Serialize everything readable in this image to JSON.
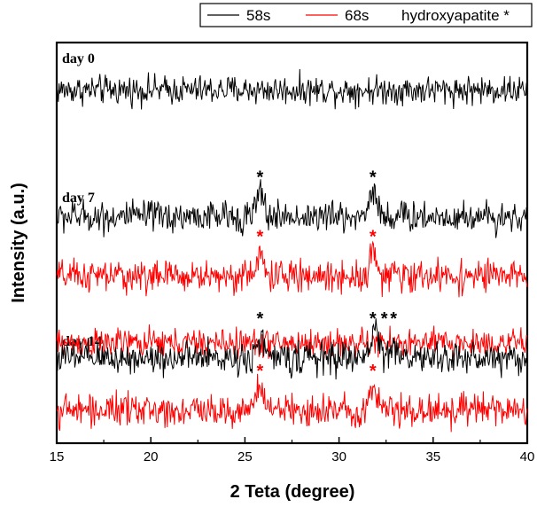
{
  "chart_data": {
    "type": "line",
    "title": "",
    "xlabel": "2 Teta (degree)",
    "ylabel": "Intensity (a.u.)",
    "xlim": [
      15,
      40
    ],
    "xticks": [
      15,
      20,
      25,
      30,
      35,
      40
    ],
    "y_scale": "arbitrary units, traces vertically offset",
    "legend_position": "top-right, outside plot area",
    "legend": [
      {
        "label": "58s",
        "color": "#000000"
      },
      {
        "label": "68s",
        "color": "#ff0000"
      },
      {
        "label": "hydroxyapatite *",
        "marker": true
      }
    ],
    "series": [
      {
        "name": "58s",
        "color": "#000000",
        "panel": "day 0",
        "offset": 92,
        "noise": 0.9,
        "peaks": []
      },
      {
        "name": "68s",
        "color": "#ff0000",
        "panel": "day 0",
        "offset": 24,
        "noise": 0.9,
        "peaks": []
      },
      {
        "name": "58s",
        "color": "#000000",
        "panel": "day 7",
        "offset": 58,
        "noise": 1.0,
        "peaks": [
          {
            "x": 25.8,
            "h": 1.3
          },
          {
            "x": 31.8,
            "h": 1.6
          }
        ]
      },
      {
        "name": "68s",
        "color": "#ff0000",
        "panel": "day 7",
        "offset": 42,
        "noise": 1.0,
        "peaks": [
          {
            "x": 25.8,
            "h": 1.1
          },
          {
            "x": 31.8,
            "h": 1.3
          }
        ]
      },
      {
        "name": "58s",
        "color": "#000000",
        "panel": "day 14",
        "offset": 20,
        "noise": 1.0,
        "peaks": [
          {
            "x": 25.8,
            "h": 1.2
          },
          {
            "x": 31.9,
            "h": 1.8
          },
          {
            "x": 32.9,
            "h": 0.8
          }
        ]
      },
      {
        "name": "68s",
        "color": "#ff0000",
        "panel": "day 14",
        "offset": 6,
        "noise": 1.0,
        "peaks": [
          {
            "x": 25.8,
            "h": 1.3
          },
          {
            "x": 31.8,
            "h": 1.5
          }
        ]
      }
    ],
    "panel_labels": [
      "day 0",
      "day 7",
      "day 14"
    ],
    "peak_markers": [
      {
        "x": 25.8,
        "panel": "day 7",
        "series": "58s",
        "text": "*"
      },
      {
        "x": 31.8,
        "panel": "day 7",
        "series": "58s",
        "text": "*"
      },
      {
        "x": 25.8,
        "panel": "day 7",
        "series": "68s",
        "text": "*"
      },
      {
        "x": 31.8,
        "panel": "day 7",
        "series": "68s",
        "text": "*"
      },
      {
        "x": 25.8,
        "panel": "day 14",
        "series": "58s",
        "text": "*"
      },
      {
        "x": 31.8,
        "panel": "day 14",
        "series": "58s",
        "text": "*"
      },
      {
        "x": 32.4,
        "panel": "day 14",
        "series": "58s",
        "text": "*"
      },
      {
        "x": 32.9,
        "panel": "day 14",
        "series": "58s",
        "text": "*"
      },
      {
        "x": 25.8,
        "panel": "day 14",
        "series": "68s",
        "text": "*"
      },
      {
        "x": 31.8,
        "panel": "day 14",
        "series": "68s",
        "text": "*"
      }
    ]
  }
}
